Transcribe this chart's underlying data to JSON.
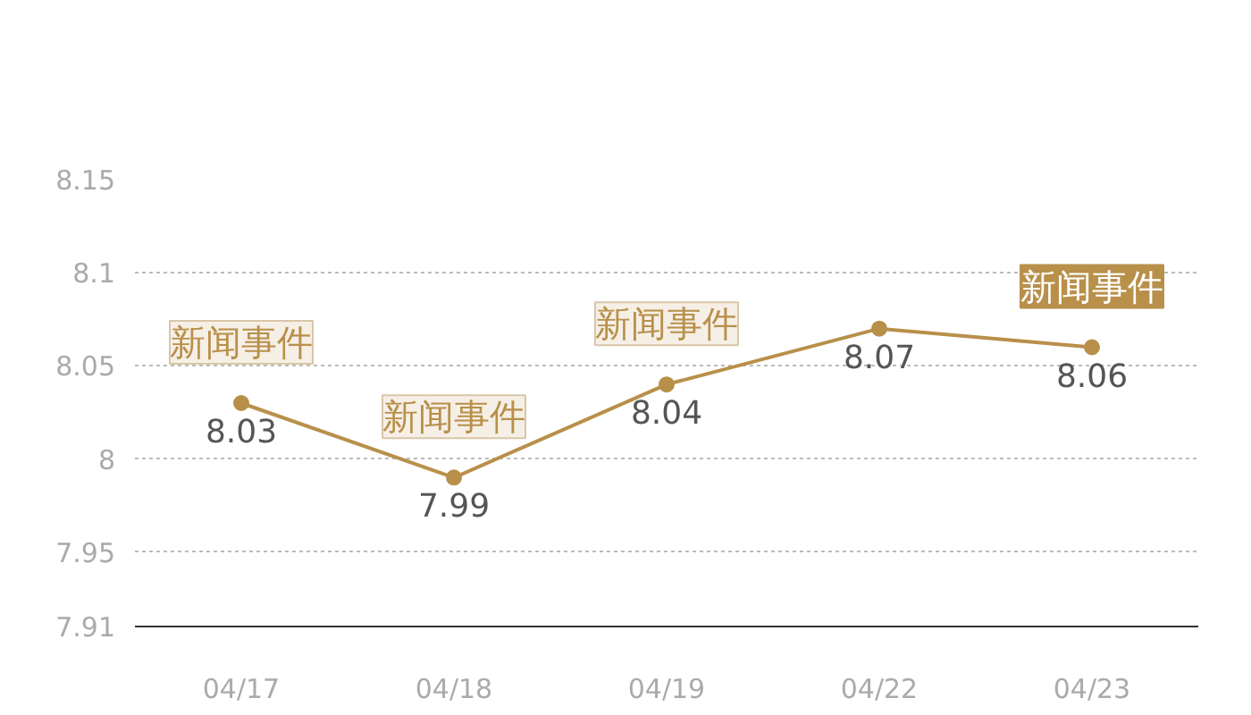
{
  "chart_data": {
    "type": "line",
    "categories": [
      "04/17",
      "04/18",
      "04/19",
      "04/22",
      "04/23"
    ],
    "series": [
      {
        "color": "#b8904a",
        "values": [
          8.03,
          7.99,
          8.04,
          8.07,
          8.06
        ]
      }
    ],
    "ylim": [
      7.91,
      8.15
    ],
    "yticks": [
      7.91,
      7.95,
      8,
      8.05,
      8.1,
      8.15
    ],
    "grid": "y",
    "marker": "circle",
    "line_style": "solid",
    "data_labels": true,
    "annotations": [
      {
        "text": "新闻事件",
        "x": "04/17",
        "y": 8.03
      },
      {
        "text": "新闻事件",
        "x": "04/18",
        "y": 7.99
      },
      {
        "text": "新闻事件",
        "x": "04/19",
        "y": 8.04
      },
      {
        "text": "新闻事件",
        "x": "04/23",
        "y": 8.06
      }
    ]
  }
}
